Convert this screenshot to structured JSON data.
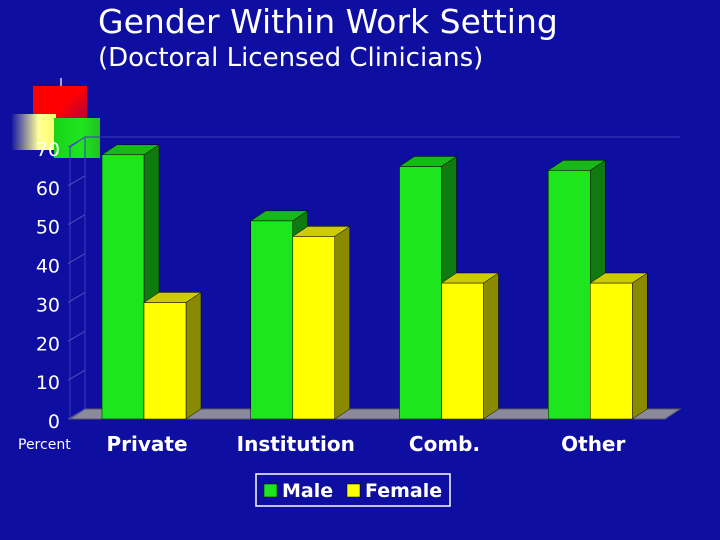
{
  "title": "Gender Within Work Setting",
  "subtitle": "(Doctoral Licensed Clinicians)",
  "colors": {
    "background": "#0e0ea0",
    "male": "#1ee61e",
    "female": "#ffff00"
  },
  "chart_data": {
    "type": "bar",
    "categories": [
      "Private",
      "Institution",
      "Comb.",
      "Other"
    ],
    "series": [
      {
        "name": "Male",
        "values": [
          68,
          51,
          65,
          64
        ]
      },
      {
        "name": "Female",
        "values": [
          30,
          47,
          35,
          35
        ]
      }
    ],
    "ylabel": "Percent",
    "ylim": [
      0,
      70
    ],
    "yticks": [
      "0",
      "10",
      "20",
      "30",
      "40",
      "50",
      "60",
      "70"
    ],
    "legend_position": "bottom",
    "grid": false
  }
}
